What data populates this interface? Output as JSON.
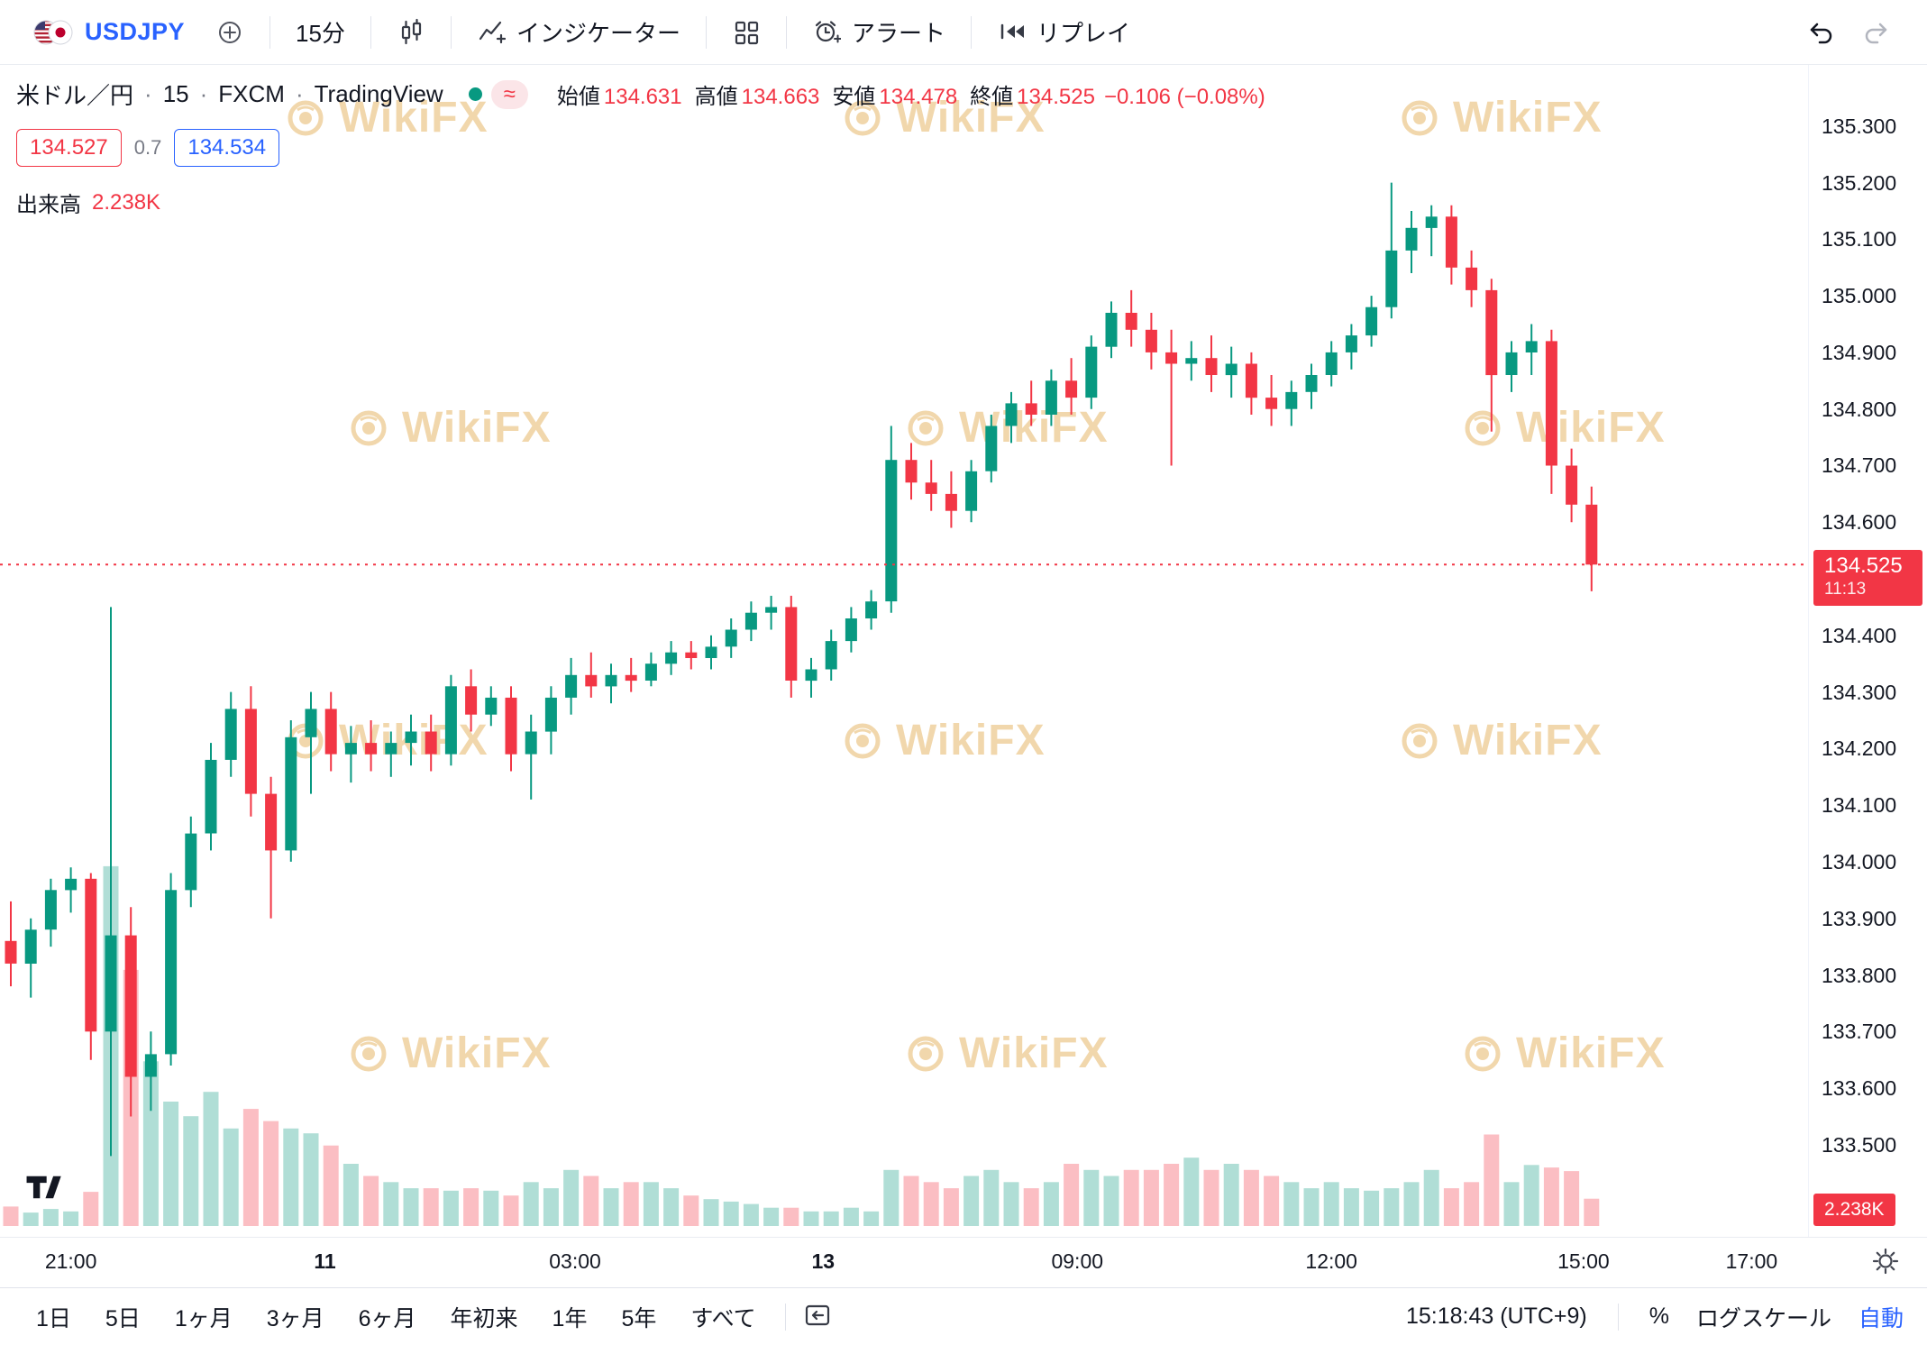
{
  "toolbar": {
    "symbol": "USDJPY",
    "timeframe": "15分",
    "indicators_label": "インジケーター",
    "alert_label": "アラート",
    "replay_label": "リプレイ"
  },
  "chart_header": {
    "title": {
      "name": "米ドル／円",
      "interval": "15",
      "exchange": "FXCM",
      "platform": "TradingView",
      "sep": "·"
    },
    "delayed_symbol": "≈",
    "ohlc": {
      "open_label": "始値",
      "open": "134.631",
      "high_label": "高値",
      "high": "134.663",
      "low_label": "安値",
      "low": "134.478",
      "close_label": "終値",
      "close": "134.525",
      "change": "−0.106 (−0.08%)"
    },
    "bid": "134.527",
    "spread": "0.7",
    "ask": "134.534",
    "volume_label": "出来高",
    "volume_value": "2.238K"
  },
  "price_scale": {
    "ticks": [
      "135.300",
      "135.200",
      "135.100",
      "135.000",
      "134.900",
      "134.800",
      "134.700",
      "134.600",
      "134.400",
      "134.300",
      "134.200",
      "134.100",
      "134.000",
      "133.900",
      "133.800",
      "133.700",
      "133.600",
      "133.500"
    ],
    "last_price": "134.525",
    "countdown": "11:13",
    "volume_badge": "2.238K"
  },
  "bottom_toolbar": {
    "ranges": [
      "1日",
      "5日",
      "1ヶ月",
      "3ヶ月",
      "6ヶ月",
      "年初来",
      "1年",
      "5年",
      "すべて"
    ],
    "clock": "15:18:43 (UTC+9)",
    "percent": "%",
    "log_label": "ログスケール",
    "auto_label": "自動"
  },
  "watermark": {
    "text": "WikiFX"
  },
  "colors": {
    "up": "#089981",
    "down": "#F23645",
    "accent_blue": "#2962FF",
    "watermark": "#DFA13C",
    "last_price_label_bg": "#F23645"
  },
  "chart_data": {
    "type": "candlestick",
    "symbol": "USDJPY",
    "interval": "15m",
    "exchange": "FXCM",
    "price_axis_range": [
      133.45,
      135.4
    ],
    "last_price": 134.525,
    "volume_units": "K",
    "time_ticks": [
      {
        "label": "21:00",
        "i": 3.0,
        "bold": false
      },
      {
        "label": "11",
        "i": 15.7,
        "bold": true
      },
      {
        "label": "03:00",
        "i": 28.2,
        "bold": false
      },
      {
        "label": "13",
        "i": 40.6,
        "bold": true
      },
      {
        "label": "09:00",
        "i": 53.3,
        "bold": false
      },
      {
        "label": "12:00",
        "i": 66.0,
        "bold": false
      },
      {
        "label": "15:00",
        "i": 78.6,
        "bold": false
      },
      {
        "label": "17:00",
        "i": 87.0,
        "bold": false
      }
    ],
    "candles": [
      [
        133.86,
        133.93,
        133.78,
        133.82,
        1.6
      ],
      [
        133.82,
        133.9,
        133.76,
        133.88,
        1.1
      ],
      [
        133.88,
        133.97,
        133.85,
        133.95,
        1.4
      ],
      [
        133.95,
        133.99,
        133.91,
        133.97,
        1.2
      ],
      [
        133.97,
        133.98,
        133.65,
        133.7,
        2.8
      ],
      [
        133.7,
        134.45,
        133.48,
        133.87,
        29.5
      ],
      [
        133.87,
        133.92,
        133.55,
        133.62,
        21.0
      ],
      [
        133.62,
        133.7,
        133.56,
        133.66,
        13.5
      ],
      [
        133.66,
        133.98,
        133.64,
        133.95,
        10.2
      ],
      [
        133.95,
        134.08,
        133.92,
        134.05,
        9.0
      ],
      [
        134.05,
        134.21,
        134.02,
        134.18,
        11.0
      ],
      [
        134.18,
        134.3,
        134.15,
        134.27,
        8.0
      ],
      [
        134.27,
        134.31,
        134.08,
        134.12,
        9.6
      ],
      [
        134.12,
        134.15,
        133.9,
        134.02,
        8.6
      ],
      [
        134.02,
        134.25,
        134.0,
        134.22,
        8.0
      ],
      [
        134.22,
        134.3,
        134.12,
        134.27,
        7.6
      ],
      [
        134.27,
        134.3,
        134.16,
        134.19,
        6.6
      ],
      [
        134.19,
        134.24,
        134.14,
        134.21,
        5.1
      ],
      [
        134.21,
        134.25,
        134.16,
        134.19,
        4.1
      ],
      [
        134.19,
        134.23,
        134.15,
        134.21,
        3.6
      ],
      [
        134.21,
        134.26,
        134.17,
        134.23,
        3.1
      ],
      [
        134.23,
        134.26,
        134.16,
        134.19,
        3.1
      ],
      [
        134.19,
        134.33,
        134.17,
        134.31,
        2.9
      ],
      [
        134.31,
        134.34,
        134.23,
        134.26,
        3.1
      ],
      [
        134.26,
        134.31,
        134.24,
        134.29,
        2.9
      ],
      [
        134.29,
        134.31,
        134.16,
        134.19,
        2.5
      ],
      [
        134.19,
        134.26,
        134.11,
        134.23,
        3.6
      ],
      [
        134.23,
        134.31,
        134.19,
        134.29,
        3.1
      ],
      [
        134.29,
        134.36,
        134.26,
        134.33,
        4.6
      ],
      [
        134.33,
        134.37,
        134.29,
        134.31,
        4.1
      ],
      [
        134.31,
        134.35,
        134.28,
        134.33,
        3.1
      ],
      [
        134.33,
        134.36,
        134.3,
        134.32,
        3.6
      ],
      [
        134.32,
        134.37,
        134.31,
        134.35,
        3.6
      ],
      [
        134.35,
        134.39,
        134.33,
        134.37,
        3.1
      ],
      [
        134.37,
        134.39,
        134.34,
        134.36,
        2.5
      ],
      [
        134.36,
        134.4,
        134.34,
        134.38,
        2.2
      ],
      [
        134.38,
        134.43,
        134.36,
        134.41,
        2.0
      ],
      [
        134.41,
        134.46,
        134.39,
        134.44,
        1.8
      ],
      [
        134.44,
        134.47,
        134.41,
        134.45,
        1.5
      ],
      [
        134.45,
        134.47,
        134.29,
        134.32,
        1.5
      ],
      [
        134.32,
        134.36,
        134.29,
        134.34,
        1.2
      ],
      [
        134.34,
        134.41,
        134.32,
        134.39,
        1.2
      ],
      [
        134.39,
        134.45,
        134.37,
        134.43,
        1.5
      ],
      [
        134.43,
        134.48,
        134.41,
        134.46,
        1.2
      ],
      [
        134.46,
        134.77,
        134.44,
        134.71,
        4.6
      ],
      [
        134.71,
        134.74,
        134.64,
        134.67,
        4.1
      ],
      [
        134.67,
        134.71,
        134.62,
        134.65,
        3.6
      ],
      [
        134.65,
        134.69,
        134.59,
        134.62,
        3.1
      ],
      [
        134.62,
        134.71,
        134.6,
        134.69,
        4.1
      ],
      [
        134.69,
        134.79,
        134.67,
        134.77,
        4.6
      ],
      [
        134.77,
        134.83,
        134.74,
        134.81,
        3.6
      ],
      [
        134.81,
        134.85,
        134.77,
        134.79,
        3.1
      ],
      [
        134.79,
        134.87,
        134.77,
        134.85,
        3.6
      ],
      [
        134.85,
        134.89,
        134.79,
        134.82,
        5.1
      ],
      [
        134.82,
        134.93,
        134.8,
        134.91,
        4.6
      ],
      [
        134.91,
        134.99,
        134.89,
        134.97,
        4.1
      ],
      [
        134.97,
        135.01,
        134.91,
        134.94,
        4.6
      ],
      [
        134.94,
        134.97,
        134.87,
        134.9,
        4.6
      ],
      [
        134.9,
        134.94,
        134.7,
        134.88,
        5.1
      ],
      [
        134.88,
        134.92,
        134.85,
        134.89,
        5.6
      ],
      [
        134.89,
        134.93,
        134.83,
        134.86,
        4.6
      ],
      [
        134.86,
        134.91,
        134.82,
        134.88,
        5.1
      ],
      [
        134.88,
        134.9,
        134.79,
        134.82,
        4.6
      ],
      [
        134.82,
        134.86,
        134.77,
        134.8,
        4.1
      ],
      [
        134.8,
        134.85,
        134.77,
        134.83,
        3.6
      ],
      [
        134.83,
        134.88,
        134.8,
        134.86,
        3.1
      ],
      [
        134.86,
        134.92,
        134.84,
        134.9,
        3.6
      ],
      [
        134.9,
        134.95,
        134.87,
        134.93,
        3.1
      ],
      [
        134.93,
        135.0,
        134.91,
        134.98,
        2.9
      ],
      [
        134.98,
        135.2,
        134.96,
        135.08,
        3.1
      ],
      [
        135.08,
        135.15,
        135.04,
        135.12,
        3.6
      ],
      [
        135.12,
        135.16,
        135.07,
        135.14,
        4.6
      ],
      [
        135.14,
        135.16,
        135.02,
        135.05,
        3.1
      ],
      [
        135.05,
        135.08,
        134.98,
        135.01,
        3.6
      ],
      [
        135.01,
        135.03,
        134.76,
        134.86,
        7.5
      ],
      [
        134.86,
        134.92,
        134.83,
        134.9,
        3.6
      ],
      [
        134.9,
        134.95,
        134.86,
        134.92,
        5.0
      ],
      [
        134.92,
        134.94,
        134.65,
        134.7,
        4.8
      ],
      [
        134.7,
        134.73,
        134.6,
        134.631,
        4.5
      ],
      [
        134.631,
        134.663,
        134.478,
        134.525,
        2.238
      ]
    ]
  }
}
